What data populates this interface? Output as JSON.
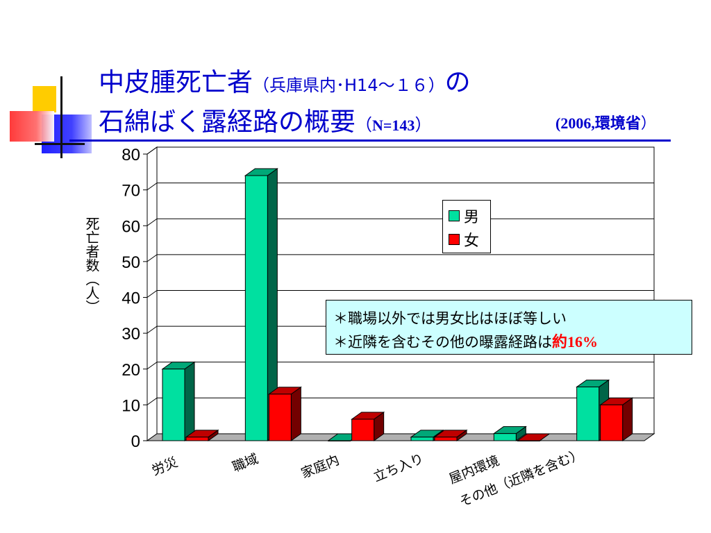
{
  "title": {
    "line1_main": "中皮腫死亡者",
    "line1_sub": "（兵庫県内･H14～１６）",
    "line1_tail": "の",
    "line2_main": "石綿ばく露経路の概要",
    "line2_paren_open": "（",
    "line2_n": "N=143",
    "line2_paren_close": "）",
    "source_paren_open": "(2006,",
    "source_org": "環境省",
    "source_paren_close": "）"
  },
  "colors": {
    "title": "#0000cc",
    "male": "#00e0a0",
    "female": "#ff0000",
    "note_bg": "#ccffff",
    "highlight": "#ff0000"
  },
  "note": {
    "line1": "＊職場以外では男女比はほぼ等しい",
    "line2_text": "＊近隣を含むその他の曝露経路は",
    "line2_highlight_prefix": "約",
    "line2_highlight_value": "16%"
  },
  "chart_data": {
    "type": "bar",
    "style": "3d-clustered",
    "categories": [
      "労災",
      "職域",
      "家庭内",
      "立ち入り",
      "屋内環境",
      "その他（近隣を含む）"
    ],
    "series": [
      {
        "name": "男",
        "color": "#00e0a0",
        "values": [
          20,
          74,
          0,
          1,
          2,
          15
        ]
      },
      {
        "name": "女",
        "color": "#ff0000",
        "values": [
          1,
          13,
          6,
          1,
          0,
          10
        ]
      }
    ],
    "ylabel": "死亡者数（人）",
    "ylim": [
      0,
      80
    ],
    "yticks": [
      0,
      10,
      20,
      30,
      40,
      50,
      60,
      70,
      80
    ],
    "grid": true,
    "legend": "top-right"
  }
}
